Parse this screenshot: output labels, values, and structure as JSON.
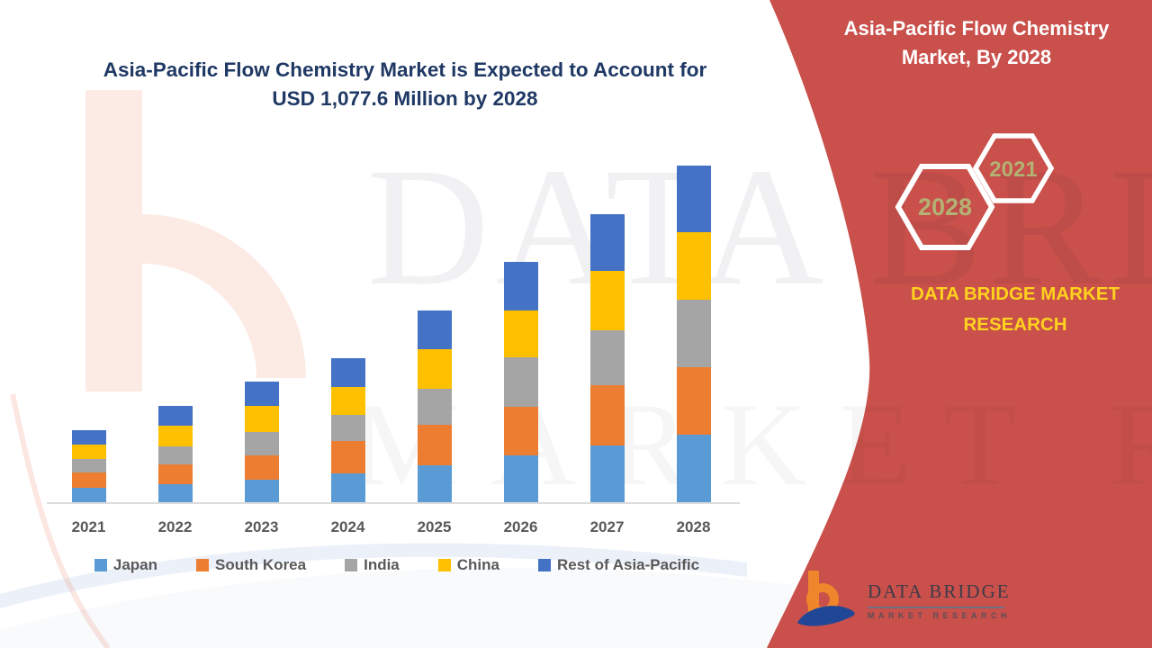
{
  "main_chart": {
    "headline_line1": "Asia-Pacific Flow Chemistry Market is Expected to Account for",
    "headline_line2": "USD 1,077.6 Million by 2028"
  },
  "chart_data": {
    "type": "bar",
    "stacked": true,
    "title": "Asia-Pacific Flow Chemistry Market is Expected to Account for USD 1,077.6 Million by 2028",
    "unit": "USD Million",
    "categories": [
      "2021",
      "2022",
      "2023",
      "2024",
      "2025",
      "2026",
      "2027",
      "2028"
    ],
    "series": [
      {
        "name": "Japan",
        "color": "#5B9BD5",
        "values": [
          49,
          60,
          76,
          94,
          122,
          153,
          184,
          218
        ]
      },
      {
        "name": "South Korea",
        "color": "#ED7D31",
        "values": [
          49,
          64,
          77,
          103,
          129,
          154,
          192,
          217
        ]
      },
      {
        "name": "India",
        "color": "#A5A5A5",
        "values": [
          43,
          57,
          75,
          84,
          115,
          158,
          177,
          214
        ]
      },
      {
        "name": "China",
        "color": "#FFC000",
        "values": [
          46,
          67,
          81,
          91,
          126,
          150,
          187,
          215
        ]
      },
      {
        "name": "Rest of Asia-Pacific",
        "color": "#4472C4",
        "values": [
          45,
          61,
          79,
          92,
          123,
          155,
          183,
          213.6
        ]
      }
    ],
    "totals_estimated": [
      232,
      309,
      388,
      464,
      615,
      770,
      923,
      1077.6
    ],
    "ylim": [
      0,
      1100
    ],
    "y_axis_visible": false,
    "x_axis_visible": true,
    "gridlines": false,
    "legend_position": "bottom"
  },
  "right_panel": {
    "title": "Asia-Pacific Flow Chemistry Market, By 2028",
    "hexagon_front_year": "2028",
    "hexagon_back_year": "2021",
    "brand_text": "DATA BRIDGE MARKET RESEARCH",
    "logo_name": "DATA BRIDGE",
    "logo_tagline": "MARKET RESEARCH"
  },
  "watermark": {
    "line1": "DATA BRIDGE",
    "line2": "MARKET RESEARCH"
  },
  "colors": {
    "panel_red": "#C9504B",
    "headline_navy": "#1F3864",
    "brand_yellow": "#FFD21E",
    "hexagon_year_text": "#B3B173",
    "axis_text_gray": "#595959",
    "logo_orange": "#F0862B",
    "logo_blue": "#1F4795"
  }
}
